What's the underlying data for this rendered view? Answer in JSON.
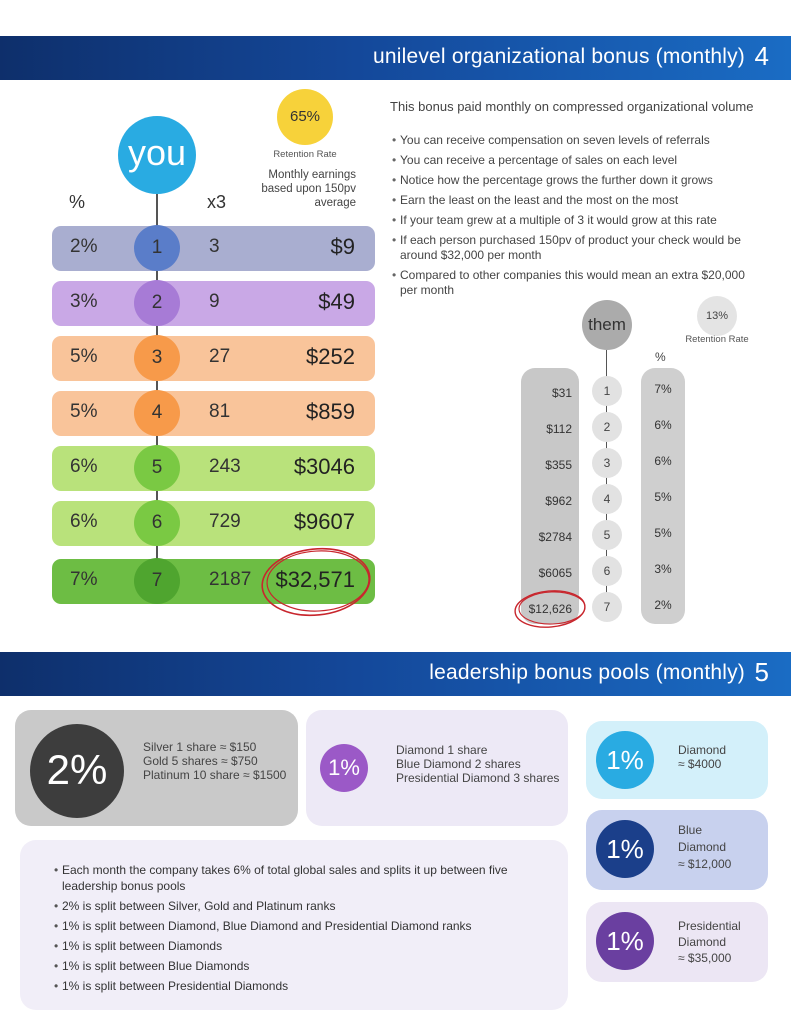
{
  "section4": {
    "title": "unilevel organizational bonus (monthly)",
    "number": "4",
    "you_label": "you",
    "retention_pct": "65%",
    "retention_label": "Retention Rate",
    "earnings_note": "Monthly earnings based upon 150pv average",
    "pct_header": "%",
    "multiplier_header": "x3",
    "levels": [
      {
        "pct": "2%",
        "level": "1",
        "count": "3",
        "earnings": "$9"
      },
      {
        "pct": "3%",
        "level": "2",
        "count": "9",
        "earnings": "$49"
      },
      {
        "pct": "5%",
        "level": "3",
        "count": "27",
        "earnings": "$252"
      },
      {
        "pct": "5%",
        "level": "4",
        "count": "81",
        "earnings": "$859"
      },
      {
        "pct": "6%",
        "level": "5",
        "count": "243",
        "earnings": "$3046"
      },
      {
        "pct": "6%",
        "level": "6",
        "count": "729",
        "earnings": "$9607"
      },
      {
        "pct": "7%",
        "level": "7",
        "count": "2187",
        "earnings": "$32,571"
      }
    ],
    "intro": "This bonus paid monthly on compressed organizational volume",
    "bullets": [
      "You can receive compensation on seven levels of referrals",
      "You can receive a percentage of sales on each level",
      "Notice how the percentage grows the further down it grows",
      "Earn the least on the least and the most on the most",
      "If your team grew at a multiple of 3 it would grow at this rate",
      "If each person purchased 150pv of product your check would be around $32,000 per month",
      "Compared to other companies this would mean an extra $20,000 per month"
    ],
    "them": {
      "label": "them",
      "retention_pct": "13%",
      "retention_label": "Retention Rate",
      "pct_header": "%",
      "rows": [
        {
          "earnings": "$31",
          "level": "1",
          "pct": "7%"
        },
        {
          "earnings": "$112",
          "level": "2",
          "pct": "6%"
        },
        {
          "earnings": "$355",
          "level": "3",
          "pct": "6%"
        },
        {
          "earnings": "$962",
          "level": "4",
          "pct": "5%"
        },
        {
          "earnings": "$2784",
          "level": "5",
          "pct": "5%"
        },
        {
          "earnings": "$6065",
          "level": "6",
          "pct": "3%"
        },
        {
          "earnings": "$12,626",
          "level": "7",
          "pct": "2%"
        }
      ]
    }
  },
  "section5": {
    "title": "leadership bonus pools (monthly)",
    "number": "5",
    "pool_silver": {
      "pct": "2%",
      "lines": [
        "Silver 1 share ≈ $150",
        "Gold 5 shares ≈ $750",
        "Platinum 10 share ≈ $1500"
      ]
    },
    "pool_diamond_split": {
      "pct": "1%",
      "lines": [
        "Diamond 1 share",
        "Blue Diamond 2 shares",
        "Presidential Diamond 3 shares"
      ]
    },
    "pool_diamond": {
      "pct": "1%",
      "name": "Diamond",
      "amount": "≈ $4000"
    },
    "pool_blue_diamond": {
      "pct": "1%",
      "name_line1": "Blue",
      "name_line2": "Diamond",
      "amount": "≈ $12,000"
    },
    "pool_presidential": {
      "pct": "1%",
      "name_line1": "Presidential",
      "name_line2": "Diamond",
      "amount": "≈ $35,000"
    },
    "bullets": [
      "Each month the company takes 6% of total global sales and splits it up between five leadership bonus pools",
      "2% is split between Silver, Gold and Platinum ranks",
      "1% is split between Diamond, Blue Diamond and Presidential Diamond ranks",
      "1% is split between Diamonds",
      "1% is split between Blue Diamonds",
      "1% is split between Presidential Diamonds"
    ]
  },
  "colors": {
    "banner": "#14489a",
    "row1": "#a9aed0",
    "row2": "#c9a8e6",
    "row3": "#f9c49a",
    "row4": "#f9c49a",
    "row5": "#b9e27b",
    "row6": "#b9e27b",
    "row7": "#6dbd44",
    "circle1": "#5a7dc9",
    "circle2": "#a77bd6",
    "circle3": "#f79a4a",
    "circle4": "#f79a4a",
    "circle5": "#7ac943",
    "circle6": "#7ac943",
    "circle7": "#4fa52f",
    "you_circle": "#29abe2",
    "retention_badge": "#f7d23a",
    "highlight_red": "#c8262d"
  }
}
